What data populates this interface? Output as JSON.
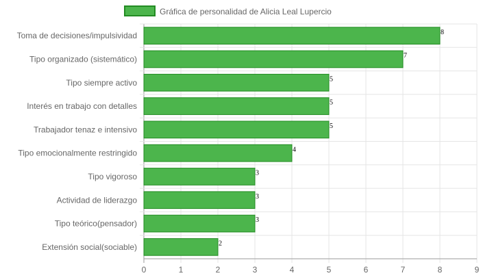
{
  "chart_data": {
    "type": "bar",
    "orientation": "horizontal",
    "legend_position": "top",
    "grid": true,
    "xlim": [
      0,
      9
    ],
    "ticks": [
      "0",
      "1",
      "2",
      "3",
      "4",
      "5",
      "6",
      "7",
      "8",
      "9"
    ],
    "series": [
      {
        "name": "Gráfica de personalidad de Alicia Leal Lupercio",
        "color": "#4cb54c",
        "border_color": "#228b22",
        "categories": [
          "Toma de decisiones/impulsividad",
          "Tipo organizado (sistemático)",
          "Tipo siempre activo",
          "Interés en trabajo con detalles",
          "Trabajador tenaz e intensivo",
          "Tipo emocionalmente restringido",
          "Tipo vigoroso",
          "Actividad de liderazgo",
          "Tipo teórico(pensador)",
          "Extensión social(sociable)"
        ],
        "values": [
          8,
          7,
          5,
          5,
          5,
          4,
          3,
          3,
          3,
          2
        ],
        "value_labels": [
          "8",
          "7",
          "5",
          "5",
          "5",
          "4",
          "3",
          "3",
          "3",
          "2"
        ]
      }
    ]
  }
}
